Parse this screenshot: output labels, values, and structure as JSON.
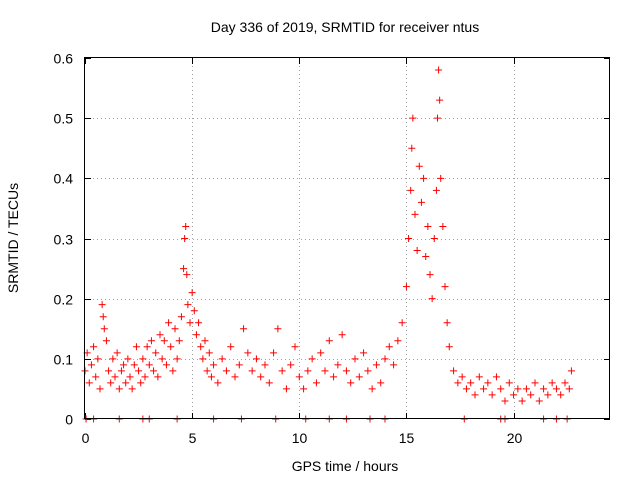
{
  "chart_data": {
    "type": "scatter",
    "title": "Day 336 of 2019, SRMTID for receiver ntus",
    "xlabel": "GPS time / hours",
    "ylabel": "SRMTID / TECUs",
    "xlim": [
      0,
      24.5
    ],
    "ylim": [
      0,
      0.6
    ],
    "x_ticks": [
      "0",
      "5",
      "10",
      "15",
      "20"
    ],
    "x_tick_values": [
      0,
      5,
      10,
      15,
      20
    ],
    "y_ticks": [
      "0",
      "0.1",
      "0.2",
      "0.3",
      "0.4",
      "0.5",
      "0.6"
    ],
    "y_tick_values": [
      0,
      0.1,
      0.2,
      0.3,
      0.4,
      0.5,
      0.6
    ],
    "grid": true,
    "marker": "plus",
    "series": [
      {
        "name": "SRMTID",
        "color": "#ff0000",
        "points": [
          [
            0.0,
            0.08
          ],
          [
            0.1,
            0.11
          ],
          [
            0.2,
            0.06
          ],
          [
            0.3,
            0.09
          ],
          [
            0.4,
            0.12
          ],
          [
            0.5,
            0.07
          ],
          [
            0.6,
            0.1
          ],
          [
            0.7,
            0.05
          ],
          [
            0.8,
            0.19
          ],
          [
            0.85,
            0.17
          ],
          [
            0.9,
            0.15
          ],
          [
            1.0,
            0.13
          ],
          [
            1.1,
            0.08
          ],
          [
            1.2,
            0.06
          ],
          [
            1.3,
            0.1
          ],
          [
            1.4,
            0.07
          ],
          [
            1.5,
            0.11
          ],
          [
            1.6,
            0.05
          ],
          [
            1.7,
            0.08
          ],
          [
            1.8,
            0.09
          ],
          [
            1.9,
            0.06
          ],
          [
            2.0,
            0.1
          ],
          [
            2.1,
            0.07
          ],
          [
            2.2,
            0.05
          ],
          [
            2.3,
            0.09
          ],
          [
            2.4,
            0.12
          ],
          [
            2.5,
            0.08
          ],
          [
            2.6,
            0.06
          ],
          [
            2.7,
            0.1
          ],
          [
            2.8,
            0.07
          ],
          [
            2.9,
            0.12
          ],
          [
            3.0,
            0.09
          ],
          [
            3.1,
            0.13
          ],
          [
            3.2,
            0.08
          ],
          [
            3.3,
            0.11
          ],
          [
            3.4,
            0.07
          ],
          [
            3.5,
            0.14
          ],
          [
            3.6,
            0.1
          ],
          [
            3.7,
            0.13
          ],
          [
            3.8,
            0.09
          ],
          [
            3.9,
            0.16
          ],
          [
            4.0,
            0.12
          ],
          [
            4.1,
            0.08
          ],
          [
            4.2,
            0.15
          ],
          [
            4.3,
            0.1
          ],
          [
            4.4,
            0.13
          ],
          [
            4.5,
            0.17
          ],
          [
            4.6,
            0.25
          ],
          [
            4.65,
            0.3
          ],
          [
            4.7,
            0.32
          ],
          [
            4.75,
            0.24
          ],
          [
            4.8,
            0.19
          ],
          [
            4.9,
            0.16
          ],
          [
            5.0,
            0.21
          ],
          [
            5.1,
            0.18
          ],
          [
            5.2,
            0.14
          ],
          [
            5.3,
            0.16
          ],
          [
            5.4,
            0.12
          ],
          [
            5.5,
            0.1
          ],
          [
            5.6,
            0.13
          ],
          [
            5.7,
            0.08
          ],
          [
            5.8,
            0.11
          ],
          [
            5.9,
            0.07
          ],
          [
            6.0,
            0.09
          ],
          [
            6.2,
            0.06
          ],
          [
            6.4,
            0.1
          ],
          [
            6.6,
            0.08
          ],
          [
            6.8,
            0.12
          ],
          [
            7.0,
            0.07
          ],
          [
            7.2,
            0.09
          ],
          [
            7.4,
            0.15
          ],
          [
            7.6,
            0.11
          ],
          [
            7.8,
            0.08
          ],
          [
            8.0,
            0.1
          ],
          [
            8.2,
            0.07
          ],
          [
            8.4,
            0.09
          ],
          [
            8.6,
            0.06
          ],
          [
            8.8,
            0.11
          ],
          [
            9.0,
            0.15
          ],
          [
            9.2,
            0.08
          ],
          [
            9.4,
            0.05
          ],
          [
            9.6,
            0.09
          ],
          [
            9.8,
            0.12
          ],
          [
            10.0,
            0.07
          ],
          [
            10.2,
            0.05
          ],
          [
            10.4,
            0.08
          ],
          [
            10.6,
            0.1
          ],
          [
            10.8,
            0.06
          ],
          [
            11.0,
            0.11
          ],
          [
            11.2,
            0.08
          ],
          [
            11.4,
            0.13
          ],
          [
            11.6,
            0.07
          ],
          [
            11.8,
            0.09
          ],
          [
            12.0,
            0.14
          ],
          [
            12.2,
            0.08
          ],
          [
            12.4,
            0.06
          ],
          [
            12.6,
            0.1
          ],
          [
            12.8,
            0.07
          ],
          [
            13.0,
            0.11
          ],
          [
            13.2,
            0.08
          ],
          [
            13.4,
            0.05
          ],
          [
            13.6,
            0.09
          ],
          [
            13.8,
            0.06
          ],
          [
            14.0,
            0.1
          ],
          [
            14.2,
            0.12
          ],
          [
            14.4,
            0.09
          ],
          [
            14.6,
            0.13
          ],
          [
            14.8,
            0.16
          ],
          [
            15.0,
            0.22
          ],
          [
            15.1,
            0.3
          ],
          [
            15.2,
            0.38
          ],
          [
            15.25,
            0.45
          ],
          [
            15.3,
            0.5
          ],
          [
            15.4,
            0.34
          ],
          [
            15.5,
            0.28
          ],
          [
            15.6,
            0.42
          ],
          [
            15.7,
            0.36
          ],
          [
            15.8,
            0.4
          ],
          [
            15.9,
            0.27
          ],
          [
            16.0,
            0.32
          ],
          [
            16.1,
            0.24
          ],
          [
            16.2,
            0.2
          ],
          [
            16.3,
            0.3
          ],
          [
            16.4,
            0.38
          ],
          [
            16.45,
            0.5
          ],
          [
            16.5,
            0.58
          ],
          [
            16.55,
            0.53
          ],
          [
            16.6,
            0.4
          ],
          [
            16.7,
            0.32
          ],
          [
            16.8,
            0.22
          ],
          [
            16.9,
            0.16
          ],
          [
            17.0,
            0.12
          ],
          [
            17.2,
            0.08
          ],
          [
            17.4,
            0.06
          ],
          [
            17.6,
            0.07
          ],
          [
            17.8,
            0.05
          ],
          [
            18.0,
            0.06
          ],
          [
            18.2,
            0.04
          ],
          [
            18.4,
            0.07
          ],
          [
            18.6,
            0.05
          ],
          [
            18.8,
            0.06
          ],
          [
            19.0,
            0.04
          ],
          [
            19.2,
            0.07
          ],
          [
            19.4,
            0.05
          ],
          [
            19.6,
            0.03
          ],
          [
            19.8,
            0.06
          ],
          [
            20.0,
            0.04
          ],
          [
            20.2,
            0.05
          ],
          [
            20.4,
            0.03
          ],
          [
            20.6,
            0.05
          ],
          [
            20.8,
            0.04
          ],
          [
            21.0,
            0.06
          ],
          [
            21.2,
            0.03
          ],
          [
            21.4,
            0.05
          ],
          [
            21.6,
            0.04
          ],
          [
            21.8,
            0.06
          ],
          [
            22.0,
            0.05
          ],
          [
            22.2,
            0.04
          ],
          [
            22.4,
            0.06
          ],
          [
            22.6,
            0.05
          ],
          [
            22.7,
            0.08
          ],
          [
            0.05,
            0
          ],
          [
            0.4,
            0
          ],
          [
            1.6,
            0
          ],
          [
            2.7,
            0
          ],
          [
            3.0,
            0
          ],
          [
            4.3,
            0
          ],
          [
            6.0,
            0
          ],
          [
            7.3,
            0
          ],
          [
            8.9,
            0
          ],
          [
            10.3,
            0
          ],
          [
            11.4,
            0
          ],
          [
            12.2,
            0
          ],
          [
            13.3,
            0
          ],
          [
            14.0,
            0
          ],
          [
            17.7,
            0
          ],
          [
            19.4,
            0
          ],
          [
            19.6,
            0
          ],
          [
            21.4,
            0
          ],
          [
            22.0,
            0
          ],
          [
            22.5,
            0
          ]
        ]
      }
    ]
  }
}
